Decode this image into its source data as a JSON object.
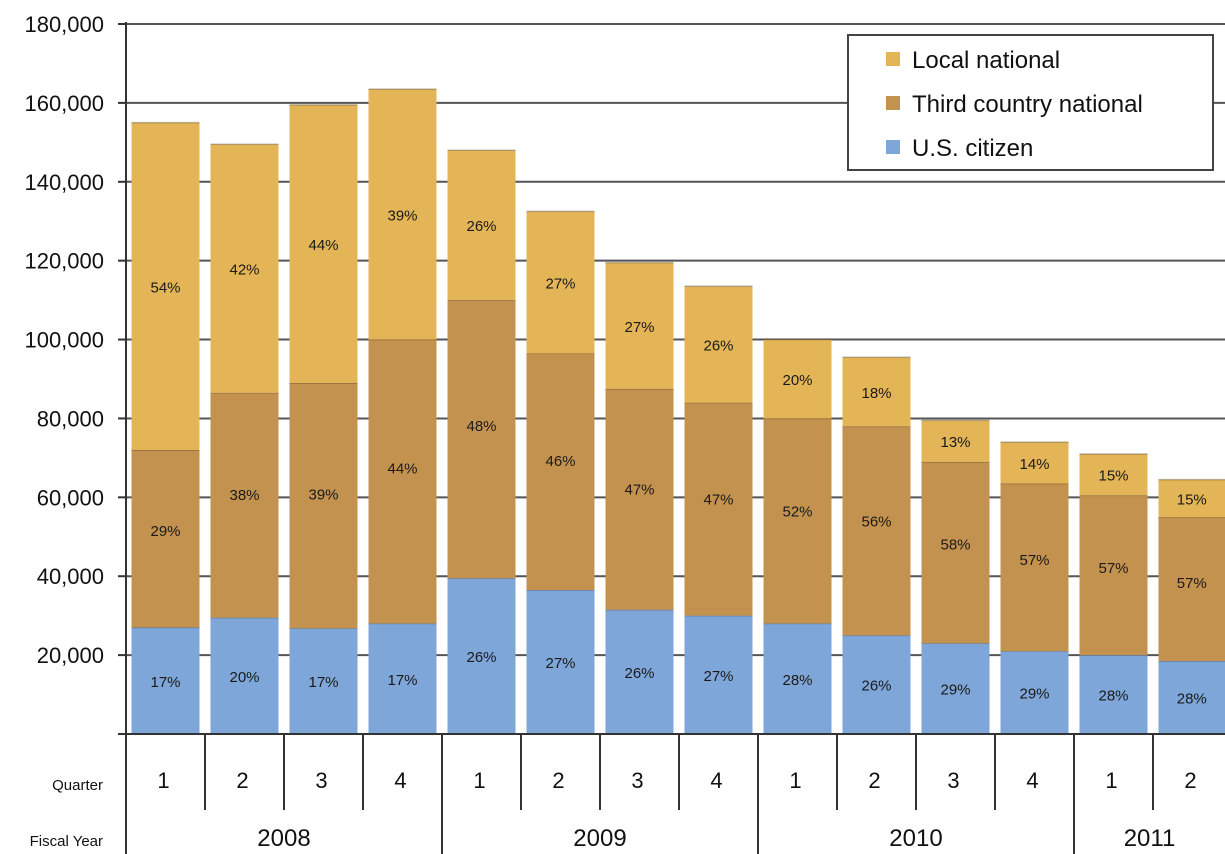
{
  "chart_data": {
    "type": "bar",
    "stacked": true,
    "y_ticks": [
      "180,000",
      "160,000",
      "140,000",
      "120,000",
      "100,000",
      "80,000",
      "60,000",
      "40,000",
      "20,000"
    ],
    "ylim": [
      0,
      180000
    ],
    "grid": true,
    "legend_position": "top-right",
    "row_labels": {
      "quarter": "Quarter",
      "fiscal_year": "Fiscal Year"
    },
    "quarters": [
      "1",
      "2",
      "3",
      "4",
      "1",
      "2",
      "3",
      "4",
      "1",
      "2",
      "3",
      "4",
      "1",
      "2"
    ],
    "years": [
      {
        "label": "2008",
        "span": 4
      },
      {
        "label": "2009",
        "span": 4
      },
      {
        "label": "2010",
        "span": 4
      },
      {
        "label": "2011",
        "span": 2
      }
    ],
    "series": [
      {
        "name": "U.S. citizen",
        "color": "#7ea6d9",
        "values": [
          27000,
          29500,
          26800,
          28000,
          39500,
          36500,
          31500,
          30000,
          28000,
          25000,
          23000,
          21000,
          20000,
          18500
        ],
        "labels": [
          "17%",
          "20%",
          "17%",
          "17%",
          "26%",
          "27%",
          "26%",
          "27%",
          "28%",
          "26%",
          "29%",
          "29%",
          "28%",
          "28%"
        ]
      },
      {
        "name": "Third country national",
        "color": "#c4924f",
        "values": [
          45000,
          57000,
          62200,
          72000,
          70500,
          60000,
          56000,
          54000,
          52000,
          53000,
          46000,
          42500,
          40500,
          36500
        ],
        "labels": [
          "29%",
          "38%",
          "39%",
          "44%",
          "48%",
          "46%",
          "47%",
          "47%",
          "52%",
          "56%",
          "58%",
          "57%",
          "57%",
          "57%"
        ]
      },
      {
        "name": "Local national",
        "color": "#e4b556",
        "values": [
          83000,
          63000,
          70500,
          63500,
          38000,
          36000,
          32000,
          29500,
          20000,
          17500,
          10500,
          10500,
          10500,
          9500
        ],
        "labels": [
          "54%",
          "42%",
          "44%",
          "39%",
          "26%",
          "27%",
          "27%",
          "26%",
          "20%",
          "18%",
          "13%",
          "14%",
          "15%",
          "15%"
        ]
      }
    ],
    "legend_order": [
      "Local national",
      "Third country national",
      "U.S. citizen"
    ]
  }
}
